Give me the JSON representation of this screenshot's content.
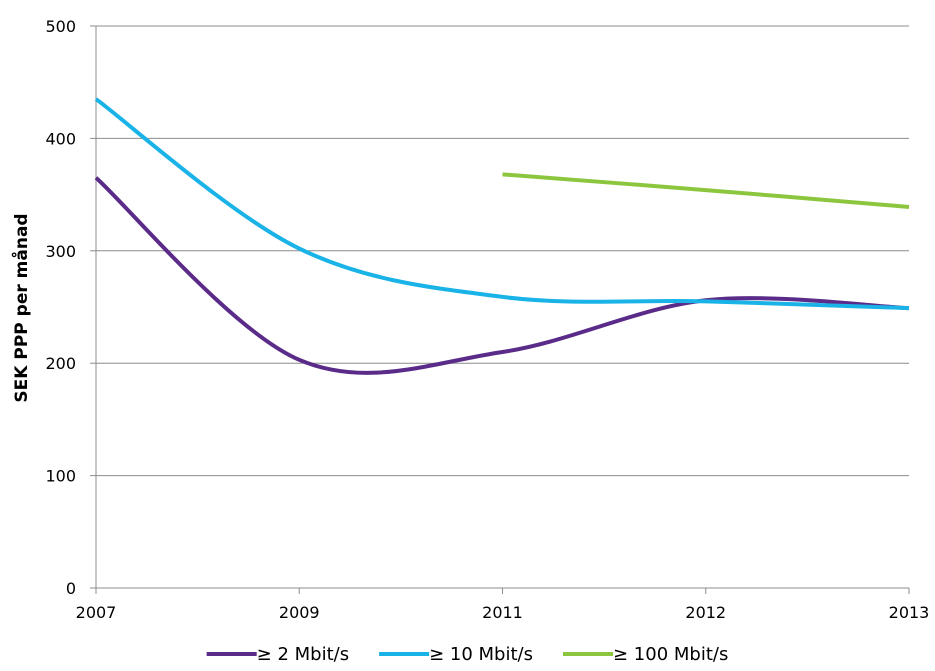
{
  "chart_data": {
    "type": "line",
    "categories": [
      "2007",
      "2009",
      "2011",
      "2012",
      "2013"
    ],
    "ylabel": "SEK PPP per månad",
    "xlabel": "",
    "ylim": [
      0,
      500
    ],
    "yticks": [
      0,
      100,
      200,
      300,
      400,
      500
    ],
    "grid": true,
    "smooth": true,
    "legend_position": "bottom",
    "series": [
      {
        "name": "≥ 2 Mbit/s",
        "color": "#5b2b8a",
        "values": [
          365,
          203,
          210,
          256,
          249
        ]
      },
      {
        "name": "≥ 10 Mbit/s",
        "color": "#19b3e8",
        "values": [
          435,
          302,
          259,
          255,
          249
        ]
      },
      {
        "name": "≥ 100 Mbit/s",
        "color": "#8cc63f",
        "values": [
          null,
          null,
          368,
          354,
          339
        ]
      }
    ]
  }
}
